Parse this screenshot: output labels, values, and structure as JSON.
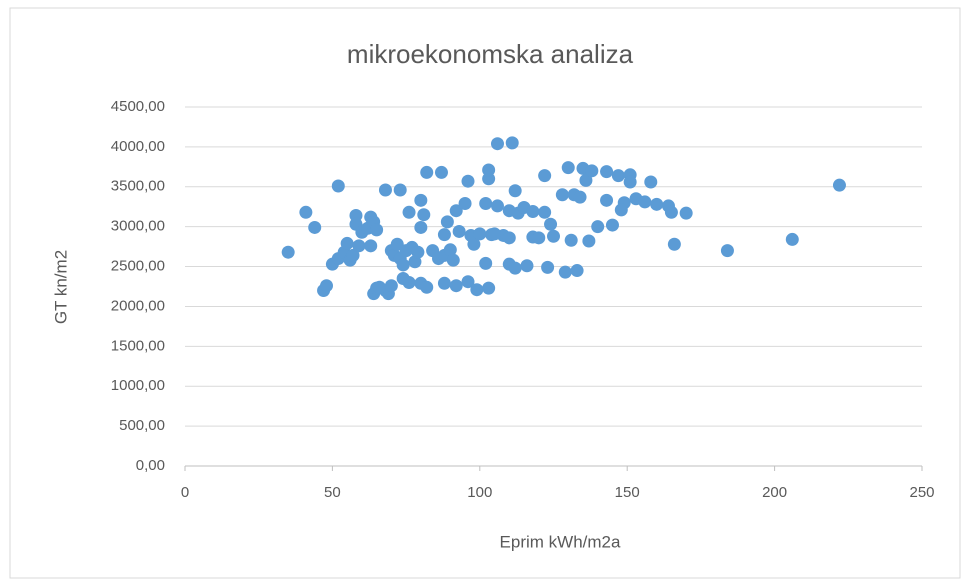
{
  "chart_data": {
    "type": "scatter",
    "title": "mikroekonomska analiza",
    "xlabel": "Eprim kWh/m2a",
    "ylabel": "GT kn/m2",
    "xlim": [
      0,
      250
    ],
    "xticks": [
      0,
      50,
      100,
      150,
      200,
      250
    ],
    "ylim": [
      0,
      4500
    ],
    "yticks": [
      {
        "value": 0,
        "label": "0,00"
      },
      {
        "value": 500,
        "label": "500,00"
      },
      {
        "value": 1000,
        "label": "1000,00"
      },
      {
        "value": 1500,
        "label": "1500,00"
      },
      {
        "value": 2000,
        "label": "2000,00"
      },
      {
        "value": 2500,
        "label": "2500,00"
      },
      {
        "value": 3000,
        "label": "3000,00"
      },
      {
        "value": 3500,
        "label": "3500,00"
      },
      {
        "value": 4000,
        "label": "4000,00"
      },
      {
        "value": 4500,
        "label": "4500,00"
      }
    ],
    "grid": true,
    "x": [
      35,
      41,
      44,
      52,
      47,
      48,
      50,
      52,
      54,
      55,
      56,
      57,
      58,
      58,
      59,
      60,
      62,
      63,
      64,
      65,
      63,
      64,
      65,
      68,
      69,
      70,
      68,
      73,
      70,
      71,
      72,
      73,
      74,
      75,
      76,
      77,
      78,
      79,
      80,
      81,
      80,
      82,
      84,
      86,
      87,
      88,
      89,
      88,
      90,
      91,
      92,
      95,
      96,
      97,
      98,
      100,
      102,
      103,
      103,
      104,
      106,
      106,
      108,
      110,
      111,
      110,
      112,
      110,
      112,
      113,
      115,
      116,
      118,
      118,
      120,
      122,
      123,
      124,
      122,
      125,
      128,
      129,
      130,
      131,
      132,
      133,
      134,
      135,
      136,
      138,
      137,
      140,
      143,
      143,
      145,
      147,
      149,
      148,
      151,
      151,
      153,
      156,
      158,
      160,
      164,
      165,
      166,
      170,
      184,
      206,
      222,
      80,
      82,
      88,
      92,
      96,
      99,
      103,
      102,
      76,
      74,
      66,
      93,
      105
    ],
    "series": [
      {
        "color": "#5b9bd5",
        "values": [
          2680,
          3180,
          2990,
          3510,
          2200,
          2260,
          2530,
          2600,
          2680,
          2790,
          2580,
          2640,
          3140,
          3030,
          2760,
          2930,
          2980,
          3120,
          3060,
          2960,
          2760,
          2160,
          2230,
          2200,
          2160,
          2260,
          3460,
          3460,
          2700,
          2640,
          2780,
          2600,
          2520,
          2700,
          3180,
          2740,
          2560,
          2680,
          3330,
          3150,
          2990,
          3680,
          2700,
          2600,
          3680,
          2900,
          3060,
          2640,
          2710,
          2580,
          3200,
          3290,
          3570,
          2890,
          2780,
          2910,
          3290,
          3600,
          3710,
          2900,
          3260,
          4040,
          2890,
          2860,
          4050,
          3200,
          3450,
          2530,
          2480,
          3170,
          3240,
          2510,
          3190,
          2870,
          2860,
          3180,
          2490,
          3030,
          3640,
          2880,
          3400,
          2430,
          3740,
          2830,
          3400,
          2450,
          3370,
          3730,
          3580,
          3700,
          2820,
          3000,
          3690,
          3330,
          3020,
          3640,
          3300,
          3210,
          3650,
          3560,
          3350,
          3310,
          3560,
          3280,
          3260,
          3180,
          2780,
          3170,
          2700,
          2840,
          3520,
          2290,
          2240,
          2290,
          2260,
          2310,
          2210,
          2230,
          2540,
          2300,
          2350,
          2240,
          2940,
          2910
        ]
      }
    ]
  }
}
